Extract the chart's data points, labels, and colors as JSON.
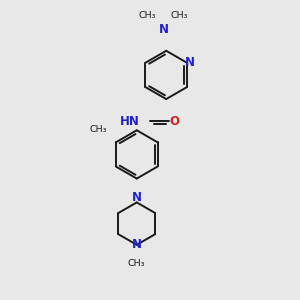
{
  "bg_color": "#e8e8e8",
  "bond_color": "#1a1a1a",
  "N_color": "#2222cc",
  "O_color": "#cc2222",
  "line_width": 1.4,
  "figsize": [
    3.0,
    3.0
  ],
  "dpi": 100,
  "xlim": [
    0,
    10
  ],
  "ylim": [
    0,
    10
  ]
}
